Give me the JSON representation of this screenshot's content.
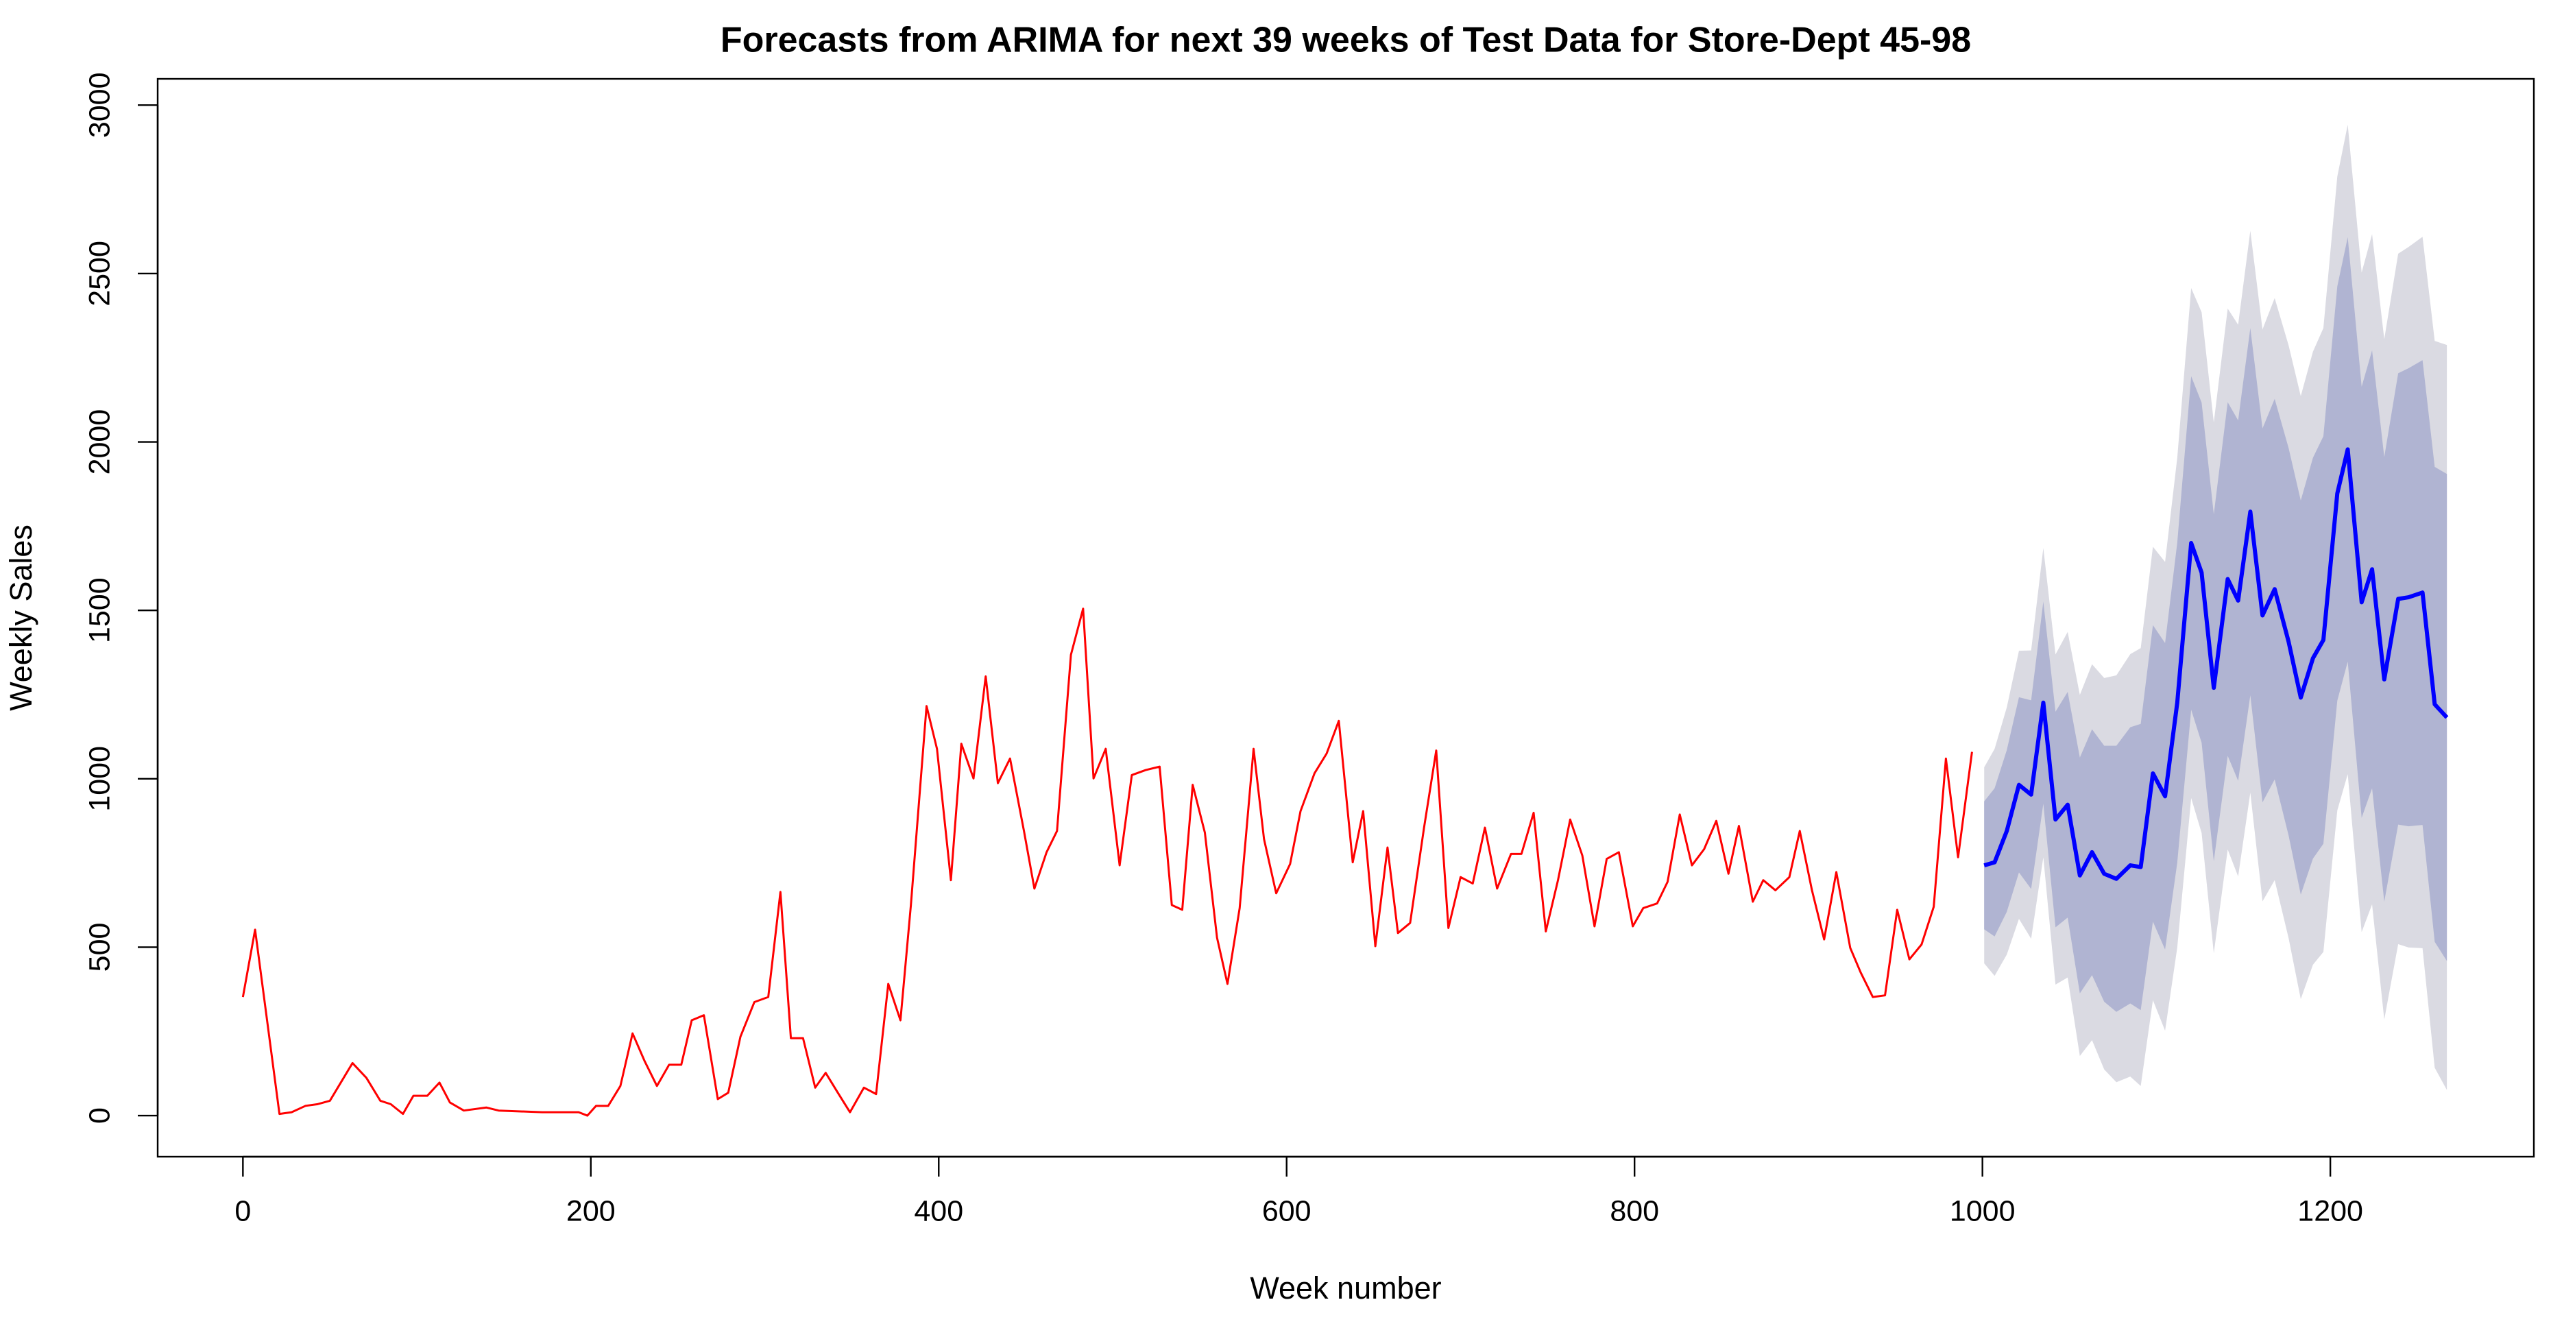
{
  "chart_data": {
    "type": "line",
    "title": "Forecasts from ARIMA for next 39 weeks of Test Data for Store-Dept 45-98",
    "x_label": "Week number",
    "y_label": "Weekly Sales",
    "xlim": [
      -49,
      1317
    ],
    "ylim": [
      -122,
      3078
    ],
    "xticks": [
      0,
      200,
      400,
      600,
      800,
      1000,
      1200
    ],
    "yticks": [
      0,
      500,
      1000,
      1500,
      2000,
      2500,
      3000
    ],
    "series": [
      {
        "color": "#ff0000",
        "width": 3,
        "x": [
          0,
          7,
          21,
          28,
          36,
          43,
          50,
          63,
          71,
          79,
          85,
          92,
          98,
          106,
          113,
          119,
          127,
          140,
          147,
          172,
          180,
          193,
          198,
          203,
          210,
          217,
          224,
          231,
          238,
          245,
          252,
          258,
          265,
          273,
          279,
          286,
          294,
          302,
          309,
          315,
          322,
          329,
          335,
          342,
          349,
          357,
          364,
          371,
          378,
          384,
          393,
          399,
          407,
          413,
          420,
          427,
          434,
          441,
          449,
          455,
          462,
          468,
          476,
          483,
          489,
          496,
          504,
          511,
          519,
          527,
          534,
          540,
          546,
          553,
          560,
          566,
          573,
          581,
          587,
          594,
          602,
          608,
          616,
          623,
          630,
          638,
          644,
          651,
          658,
          664,
          671,
          679,
          686,
          693,
          700,
          707,
          714,
          721,
          729,
          735,
          742,
          749,
          756,
          763,
          770,
          777,
          784,
          791,
          799,
          805,
          813,
          819,
          826,
          833,
          840,
          847,
          854,
          860,
          868,
          874,
          881,
          889,
          895,
          902,
          909,
          916,
          924,
          930,
          937,
          944,
          951,
          958,
          965,
          972,
          979,
          986,
          994
        ],
        "values": [
          352,
          552,
          5,
          10,
          29,
          34,
          44,
          156,
          112,
          44,
          34,
          5,
          59,
          59,
          98,
          39,
          15,
          24,
          15,
          10,
          10,
          10,
          0,
          29,
          29,
          88,
          244,
          161,
          88,
          151,
          151,
          283,
          298,
          49,
          68,
          234,
          337,
          352,
          664,
          230,
          230,
          83,
          127,
          68,
          10,
          83,
          64,
          391,
          283,
          625,
          1216,
          1089,
          699,
          1104,
          1001,
          1304,
          987,
          1060,
          845,
          674,
          782,
          845,
          1368,
          1505,
          1001,
          1089,
          743,
          1011,
          1026,
          1036,
          625,
          611,
          982,
          840,
          528,
          391,
          616,
          1089,
          821,
          660,
          747,
          904,
          1016,
          1075,
          1172,
          752,
          904,
          503,
          796,
          542,
          572,
          855,
          1084,
          557,
          708,
          689,
          855,
          674,
          777,
          777,
          899,
          547,
          699,
          879,
          772,
          562,
          762,
          782,
          562,
          616,
          630,
          694,
          894,
          743,
          791,
          875,
          718,
          860,
          635,
          699,
          669,
          708,
          845,
          669,
          523,
          723,
          498,
          425,
          352,
          357,
          611,
          464,
          508,
          620,
          1060,
          767,
          1080
        ]
      },
      {
        "color": "#0000ff",
        "width": 6,
        "x": [
          1001,
          1007,
          1014,
          1021,
          1028,
          1035,
          1042,
          1049,
          1056,
          1063,
          1070,
          1077,
          1085,
          1091,
          1098,
          1105,
          1112,
          1120,
          1126,
          1133,
          1141,
          1147,
          1154,
          1161,
          1168,
          1176,
          1183,
          1190,
          1196,
          1204,
          1210,
          1218,
          1224,
          1231,
          1239,
          1245,
          1253,
          1260,
          1267
        ],
        "values": [
          743,
          752,
          845,
          982,
          953,
          1226,
          879,
          923,
          713,
          782,
          718,
          703,
          743,
          738,
          1016,
          948,
          1226,
          1700,
          1612,
          1270,
          1593,
          1529,
          1793,
          1485,
          1563,
          1407,
          1241,
          1358,
          1412,
          1847,
          1978,
          1524,
          1622,
          1295,
          1534,
          1539,
          1553,
          1221,
          1182
        ]
      }
    ],
    "bands": [
      {
        "color": "#dadae2",
        "lower": [
          452,
          415,
          478,
          584,
          525,
          767,
          389,
          410,
          177,
          224,
          137,
          99,
          116,
          88,
          343,
          252,
          499,
          943,
          839,
          482,
          790,
          710,
          959,
          636,
          699,
          527,
          346,
          448,
          486,
          906,
          1014,
          545,
          627,
          285,
          509,
          499,
          497,
          142,
          76
        ],
        "upper": [
          1034,
          1089,
          1212,
          1380,
          1381,
          1685,
          1369,
          1436,
          1249,
          1340,
          1299,
          1307,
          1370,
          1388,
          1689,
          1644,
          1953,
          2457,
          2385,
          2058,
          2396,
          2348,
          2627,
          2334,
          2427,
          2287,
          2136,
          2268,
          2338,
          2788,
          2942,
          2503,
          2617,
          2305,
          2559,
          2579,
          2609,
          2300,
          2288
        ]
      },
      {
        "color": "#b0b4d2",
        "lower": [
          553,
          532,
          605,
          722,
          673,
          926,
          559,
          588,
          363,
          417,
          338,
          308,
          333,
          313,
          576,
          493,
          751,
          1205,
          1107,
          755,
          1068,
          994,
          1248,
          930,
          998,
          832,
          656,
          763,
          807,
          1232,
          1348,
          884,
          972,
          635,
          864,
          859,
          863,
          516,
          459
        ],
        "upper": [
          933,
          972,
          1085,
          1242,
          1233,
          1526,
          1199,
          1258,
          1063,
          1147,
          1098,
          1098,
          1153,
          1163,
          1456,
          1403,
          1701,
          2195,
          2117,
          1785,
          2118,
          2064,
          2338,
          2040,
          2128,
          1982,
          1826,
          1953,
          2017,
          2462,
          2608,
          2164,
          2272,
          1955,
          2204,
          2219,
          2243,
          1926,
          1905
        ]
      }
    ]
  }
}
